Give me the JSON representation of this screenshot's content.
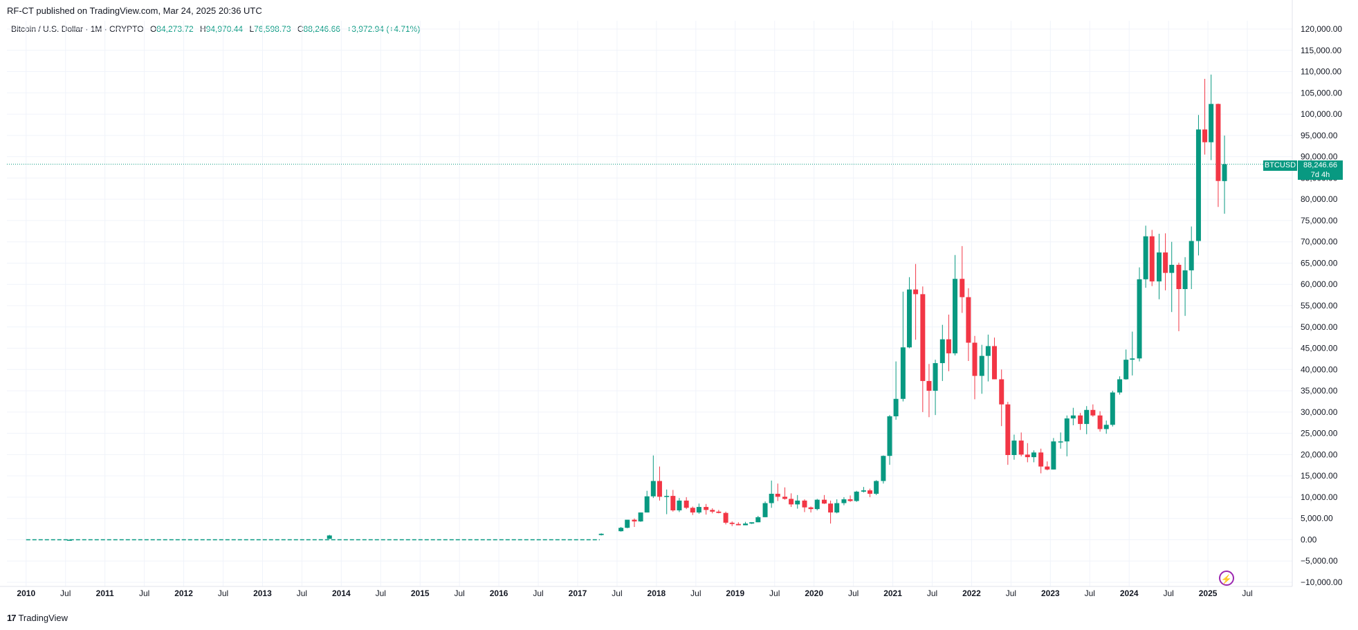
{
  "header": {
    "published_text": "RF-CT published on TradingView.com, Mar 24, 2025 20:36 UTC"
  },
  "legend": {
    "symbol_text": "Bitcoin / U.S. Dollar · 1M · CRYPTO",
    "open_label": "O",
    "open": "84,273.72",
    "high_label": "H",
    "high": "94,970.44",
    "low_label": "L",
    "low": "76,598.73",
    "close_label": "C",
    "close": "88,246.66",
    "change": "+3,972.94 (+4.71%)"
  },
  "price_badge": {
    "symbol": "BTCUSD",
    "price": "88,246.66",
    "countdown": "7d 4h"
  },
  "footer": {
    "logo_mark": "17",
    "brand": "TradingView"
  },
  "colors": {
    "up": "#089981",
    "down": "#f23645",
    "grid": "#f0f3fa",
    "text": "#131722"
  },
  "chart_data": {
    "type": "candlestick",
    "title": "Bitcoin / U.S. Dollar · 1M · CRYPTO",
    "ylim": [
      -10000,
      120000
    ],
    "y_ticks": [
      -10000,
      -5000,
      0,
      5000,
      10000,
      15000,
      20000,
      25000,
      30000,
      35000,
      40000,
      45000,
      50000,
      55000,
      60000,
      65000,
      70000,
      75000,
      80000,
      85000,
      90000,
      95000,
      100000,
      105000,
      110000,
      115000,
      120000
    ],
    "y_tick_labels": [
      "−10,000.00",
      "−5,000.00",
      "0.00",
      "5,000.00",
      "10,000.00",
      "15,000.00",
      "20,000.00",
      "25,000.00",
      "30,000.00",
      "35,000.00",
      "40,000.00",
      "45,000.00",
      "50,000.00",
      "55,000.00",
      "60,000.00",
      "65,000.00",
      "70,000.00",
      "75,000.00",
      "80,000.00",
      "85,000.00",
      "90,000.00",
      "95,000.00",
      "100,000.00",
      "105,000.00",
      "110,000.00",
      "115,000.00",
      "120,000.00"
    ],
    "x_range": [
      2009.8,
      2026.0
    ],
    "x_ticks": [
      {
        "t": 2010.0,
        "label": "2010",
        "bold": true
      },
      {
        "t": 2010.5,
        "label": "Jul",
        "bold": false
      },
      {
        "t": 2011.0,
        "label": "2011",
        "bold": true
      },
      {
        "t": 2011.5,
        "label": "Jul",
        "bold": false
      },
      {
        "t": 2012.0,
        "label": "2012",
        "bold": true
      },
      {
        "t": 2012.5,
        "label": "Jul",
        "bold": false
      },
      {
        "t": 2013.0,
        "label": "2013",
        "bold": true
      },
      {
        "t": 2013.5,
        "label": "Jul",
        "bold": false
      },
      {
        "t": 2014.0,
        "label": "2014",
        "bold": true
      },
      {
        "t": 2014.5,
        "label": "Jul",
        "bold": false
      },
      {
        "t": 2015.0,
        "label": "2015",
        "bold": true
      },
      {
        "t": 2015.5,
        "label": "Jul",
        "bold": false
      },
      {
        "t": 2016.0,
        "label": "2016",
        "bold": true
      },
      {
        "t": 2016.5,
        "label": "Jul",
        "bold": false
      },
      {
        "t": 2017.0,
        "label": "2017",
        "bold": true
      },
      {
        "t": 2017.5,
        "label": "Jul",
        "bold": false
      },
      {
        "t": 2018.0,
        "label": "2018",
        "bold": true
      },
      {
        "t": 2018.5,
        "label": "Jul",
        "bold": false
      },
      {
        "t": 2019.0,
        "label": "2019",
        "bold": true
      },
      {
        "t": 2019.5,
        "label": "Jul",
        "bold": false
      },
      {
        "t": 2020.0,
        "label": "2020",
        "bold": true
      },
      {
        "t": 2020.5,
        "label": "Jul",
        "bold": false
      },
      {
        "t": 2021.0,
        "label": "2021",
        "bold": true
      },
      {
        "t": 2021.5,
        "label": "Jul",
        "bold": false
      },
      {
        "t": 2022.0,
        "label": "2022",
        "bold": true
      },
      {
        "t": 2022.5,
        "label": "Jul",
        "bold": false
      },
      {
        "t": 2023.0,
        "label": "2023",
        "bold": true
      },
      {
        "t": 2023.5,
        "label": "Jul",
        "bold": false
      },
      {
        "t": 2024.0,
        "label": "2024",
        "bold": true
      },
      {
        "t": 2024.5,
        "label": "Jul",
        "bold": false
      },
      {
        "t": 2025.0,
        "label": "2025",
        "bold": true
      },
      {
        "t": 2025.5,
        "label": "Jul",
        "bold": false
      }
    ],
    "last_price": 88246.66,
    "candles": [
      {
        "t": 2010.55,
        "o": 0,
        "h": 0,
        "l": 0,
        "c": 0
      },
      {
        "t": 2013.85,
        "o": 200,
        "h": 1150,
        "l": 200,
        "c": 1000
      },
      {
        "t": 2017.3,
        "o": 1100,
        "h": 1500,
        "l": 1000,
        "c": 1400
      },
      {
        "t": 2017.55,
        "o": 2000,
        "h": 3000,
        "l": 1900,
        "c": 2800
      },
      {
        "t": 2017.63,
        "o": 2800,
        "h": 4700,
        "l": 2700,
        "c": 4700
      },
      {
        "t": 2017.72,
        "o": 4700,
        "h": 5000,
        "l": 3000,
        "c": 4300
      },
      {
        "t": 2017.8,
        "o": 4300,
        "h": 6400,
        "l": 4200,
        "c": 6400
      },
      {
        "t": 2017.88,
        "o": 6400,
        "h": 11500,
        "l": 6400,
        "c": 10200
      },
      {
        "t": 2017.96,
        "o": 10200,
        "h": 19800,
        "l": 9800,
        "c": 13800
      },
      {
        "t": 2018.04,
        "o": 13800,
        "h": 17200,
        "l": 9200,
        "c": 10100
      },
      {
        "t": 2018.13,
        "o": 10100,
        "h": 11800,
        "l": 6000,
        "c": 10300
      },
      {
        "t": 2018.21,
        "o": 10300,
        "h": 11700,
        "l": 6600,
        "c": 6900
      },
      {
        "t": 2018.29,
        "o": 6900,
        "h": 9800,
        "l": 6500,
        "c": 9200
      },
      {
        "t": 2018.38,
        "o": 9200,
        "h": 10000,
        "l": 7200,
        "c": 7500
      },
      {
        "t": 2018.46,
        "o": 7500,
        "h": 7800,
        "l": 5800,
        "c": 6400
      },
      {
        "t": 2018.54,
        "o": 6400,
        "h": 8500,
        "l": 6100,
        "c": 7700
      },
      {
        "t": 2018.63,
        "o": 7700,
        "h": 8400,
        "l": 5900,
        "c": 7000
      },
      {
        "t": 2018.71,
        "o": 7000,
        "h": 7400,
        "l": 6200,
        "c": 6600
      },
      {
        "t": 2018.79,
        "o": 6600,
        "h": 7000,
        "l": 6200,
        "c": 6300
      },
      {
        "t": 2018.88,
        "o": 6300,
        "h": 6600,
        "l": 3600,
        "c": 4000
      },
      {
        "t": 2018.96,
        "o": 4000,
        "h": 4300,
        "l": 3200,
        "c": 3700
      },
      {
        "t": 2019.04,
        "o": 3700,
        "h": 4100,
        "l": 3400,
        "c": 3400
      },
      {
        "t": 2019.13,
        "o": 3400,
        "h": 4200,
        "l": 3400,
        "c": 3800
      },
      {
        "t": 2019.21,
        "o": 3800,
        "h": 4100,
        "l": 3700,
        "c": 4100
      },
      {
        "t": 2019.29,
        "o": 4100,
        "h": 5600,
        "l": 4100,
        "c": 5300
      },
      {
        "t": 2019.38,
        "o": 5300,
        "h": 9000,
        "l": 5300,
        "c": 8600
      },
      {
        "t": 2019.46,
        "o": 8600,
        "h": 13900,
        "l": 7500,
        "c": 10800
      },
      {
        "t": 2019.54,
        "o": 10800,
        "h": 13200,
        "l": 9100,
        "c": 10100
      },
      {
        "t": 2019.63,
        "o": 10100,
        "h": 12300,
        "l": 9400,
        "c": 9600
      },
      {
        "t": 2019.71,
        "o": 9600,
        "h": 10900,
        "l": 7700,
        "c": 8300
      },
      {
        "t": 2019.79,
        "o": 8300,
        "h": 10500,
        "l": 7300,
        "c": 9200
      },
      {
        "t": 2019.88,
        "o": 9200,
        "h": 9500,
        "l": 6500,
        "c": 7600
      },
      {
        "t": 2019.96,
        "o": 7600,
        "h": 7800,
        "l": 6400,
        "c": 7200
      },
      {
        "t": 2020.04,
        "o": 7200,
        "h": 9600,
        "l": 6900,
        "c": 9400
      },
      {
        "t": 2020.13,
        "o": 9400,
        "h": 10500,
        "l": 8400,
        "c": 8500
      },
      {
        "t": 2020.21,
        "o": 8500,
        "h": 9200,
        "l": 3800,
        "c": 6400
      },
      {
        "t": 2020.29,
        "o": 6400,
        "h": 9500,
        "l": 6200,
        "c": 8600
      },
      {
        "t": 2020.38,
        "o": 8600,
        "h": 10000,
        "l": 8100,
        "c": 9500
      },
      {
        "t": 2020.46,
        "o": 9500,
        "h": 10400,
        "l": 8900,
        "c": 9100
      },
      {
        "t": 2020.54,
        "o": 9100,
        "h": 11500,
        "l": 8900,
        "c": 11300
      },
      {
        "t": 2020.63,
        "o": 11300,
        "h": 12400,
        "l": 11100,
        "c": 11600
      },
      {
        "t": 2020.71,
        "o": 11600,
        "h": 12000,
        "l": 10000,
        "c": 10800
      },
      {
        "t": 2020.79,
        "o": 10800,
        "h": 14000,
        "l": 10500,
        "c": 13800
      },
      {
        "t": 2020.88,
        "o": 13800,
        "h": 19800,
        "l": 13200,
        "c": 19700
      },
      {
        "t": 2020.96,
        "o": 19700,
        "h": 29300,
        "l": 17600,
        "c": 29000
      },
      {
        "t": 2021.04,
        "o": 29000,
        "h": 41900,
        "l": 28200,
        "c": 33100
      },
      {
        "t": 2021.13,
        "o": 33100,
        "h": 58300,
        "l": 32500,
        "c": 45200
      },
      {
        "t": 2021.21,
        "o": 45200,
        "h": 61700,
        "l": 45000,
        "c": 58800
      },
      {
        "t": 2021.29,
        "o": 58800,
        "h": 64800,
        "l": 47000,
        "c": 57700
      },
      {
        "t": 2021.38,
        "o": 57700,
        "h": 59500,
        "l": 30000,
        "c": 37300
      },
      {
        "t": 2021.46,
        "o": 37300,
        "h": 41300,
        "l": 28800,
        "c": 35000
      },
      {
        "t": 2021.54,
        "o": 35000,
        "h": 42300,
        "l": 29300,
        "c": 41500
      },
      {
        "t": 2021.63,
        "o": 41500,
        "h": 50500,
        "l": 37300,
        "c": 47100
      },
      {
        "t": 2021.71,
        "o": 47100,
        "h": 52900,
        "l": 39600,
        "c": 43800
      },
      {
        "t": 2021.79,
        "o": 43800,
        "h": 66900,
        "l": 43300,
        "c": 61300
      },
      {
        "t": 2021.88,
        "o": 61300,
        "h": 69000,
        "l": 53300,
        "c": 57000
      },
      {
        "t": 2021.96,
        "o": 57000,
        "h": 59100,
        "l": 42000,
        "c": 46300
      },
      {
        "t": 2022.04,
        "o": 46300,
        "h": 47900,
        "l": 33000,
        "c": 38500
      },
      {
        "t": 2022.13,
        "o": 38500,
        "h": 45800,
        "l": 34300,
        "c": 43200
      },
      {
        "t": 2022.21,
        "o": 43200,
        "h": 48200,
        "l": 37200,
        "c": 45500
      },
      {
        "t": 2022.29,
        "o": 45500,
        "h": 47500,
        "l": 37700,
        "c": 37700
      },
      {
        "t": 2022.38,
        "o": 37700,
        "h": 40000,
        "l": 26700,
        "c": 31800
      },
      {
        "t": 2022.46,
        "o": 31800,
        "h": 32400,
        "l": 17600,
        "c": 19900
      },
      {
        "t": 2022.54,
        "o": 19900,
        "h": 24700,
        "l": 18800,
        "c": 23300
      },
      {
        "t": 2022.63,
        "o": 23300,
        "h": 25200,
        "l": 19600,
        "c": 20000
      },
      {
        "t": 2022.71,
        "o": 20000,
        "h": 22700,
        "l": 18200,
        "c": 19400
      },
      {
        "t": 2022.79,
        "o": 19400,
        "h": 21000,
        "l": 18200,
        "c": 20500
      },
      {
        "t": 2022.88,
        "o": 20500,
        "h": 21400,
        "l": 15600,
        "c": 17200
      },
      {
        "t": 2022.96,
        "o": 17200,
        "h": 18400,
        "l": 16300,
        "c": 16500
      },
      {
        "t": 2023.04,
        "o": 16500,
        "h": 23900,
        "l": 16500,
        "c": 23100
      },
      {
        "t": 2023.13,
        "o": 23100,
        "h": 25200,
        "l": 21400,
        "c": 23100
      },
      {
        "t": 2023.21,
        "o": 23100,
        "h": 29200,
        "l": 19600,
        "c": 28500
      },
      {
        "t": 2023.29,
        "o": 28500,
        "h": 31000,
        "l": 26900,
        "c": 29200
      },
      {
        "t": 2023.38,
        "o": 29200,
        "h": 29800,
        "l": 25800,
        "c": 27200
      },
      {
        "t": 2023.46,
        "o": 27200,
        "h": 31400,
        "l": 24800,
        "c": 30500
      },
      {
        "t": 2023.54,
        "o": 30500,
        "h": 31800,
        "l": 28900,
        "c": 29200
      },
      {
        "t": 2023.63,
        "o": 29200,
        "h": 30200,
        "l": 25400,
        "c": 26000
      },
      {
        "t": 2023.71,
        "o": 26000,
        "h": 28000,
        "l": 24900,
        "c": 27000
      },
      {
        "t": 2023.79,
        "o": 27000,
        "h": 35000,
        "l": 26600,
        "c": 34600
      },
      {
        "t": 2023.88,
        "o": 34600,
        "h": 38400,
        "l": 34100,
        "c": 37700
      },
      {
        "t": 2023.96,
        "o": 37700,
        "h": 44700,
        "l": 37600,
        "c": 42300
      },
      {
        "t": 2024.04,
        "o": 42300,
        "h": 48900,
        "l": 38600,
        "c": 42600
      },
      {
        "t": 2024.13,
        "o": 42600,
        "h": 64000,
        "l": 41900,
        "c": 61200
      },
      {
        "t": 2024.21,
        "o": 61200,
        "h": 73800,
        "l": 59200,
        "c": 71300
      },
      {
        "t": 2024.29,
        "o": 71300,
        "h": 72800,
        "l": 59600,
        "c": 60700
      },
      {
        "t": 2024.38,
        "o": 60700,
        "h": 71900,
        "l": 56500,
        "c": 67500
      },
      {
        "t": 2024.46,
        "o": 67500,
        "h": 72000,
        "l": 58600,
        "c": 62700
      },
      {
        "t": 2024.54,
        "o": 62700,
        "h": 70000,
        "l": 53500,
        "c": 64600
      },
      {
        "t": 2024.63,
        "o": 64600,
        "h": 65100,
        "l": 49000,
        "c": 58900
      },
      {
        "t": 2024.71,
        "o": 58900,
        "h": 66400,
        "l": 52600,
        "c": 63300
      },
      {
        "t": 2024.79,
        "o": 63300,
        "h": 73600,
        "l": 58900,
        "c": 70200
      },
      {
        "t": 2024.88,
        "o": 70200,
        "h": 99800,
        "l": 66800,
        "c": 96400
      },
      {
        "t": 2024.96,
        "o": 96400,
        "h": 108300,
        "l": 90500,
        "c": 93400
      },
      {
        "t": 2025.04,
        "o": 93400,
        "h": 109300,
        "l": 89200,
        "c": 102400
      },
      {
        "t": 2025.13,
        "o": 102400,
        "h": 102500,
        "l": 78200,
        "c": 84300
      },
      {
        "t": 2025.21,
        "o": 84273.72,
        "h": 94970.44,
        "l": 76598.73,
        "c": 88246.66
      }
    ]
  }
}
